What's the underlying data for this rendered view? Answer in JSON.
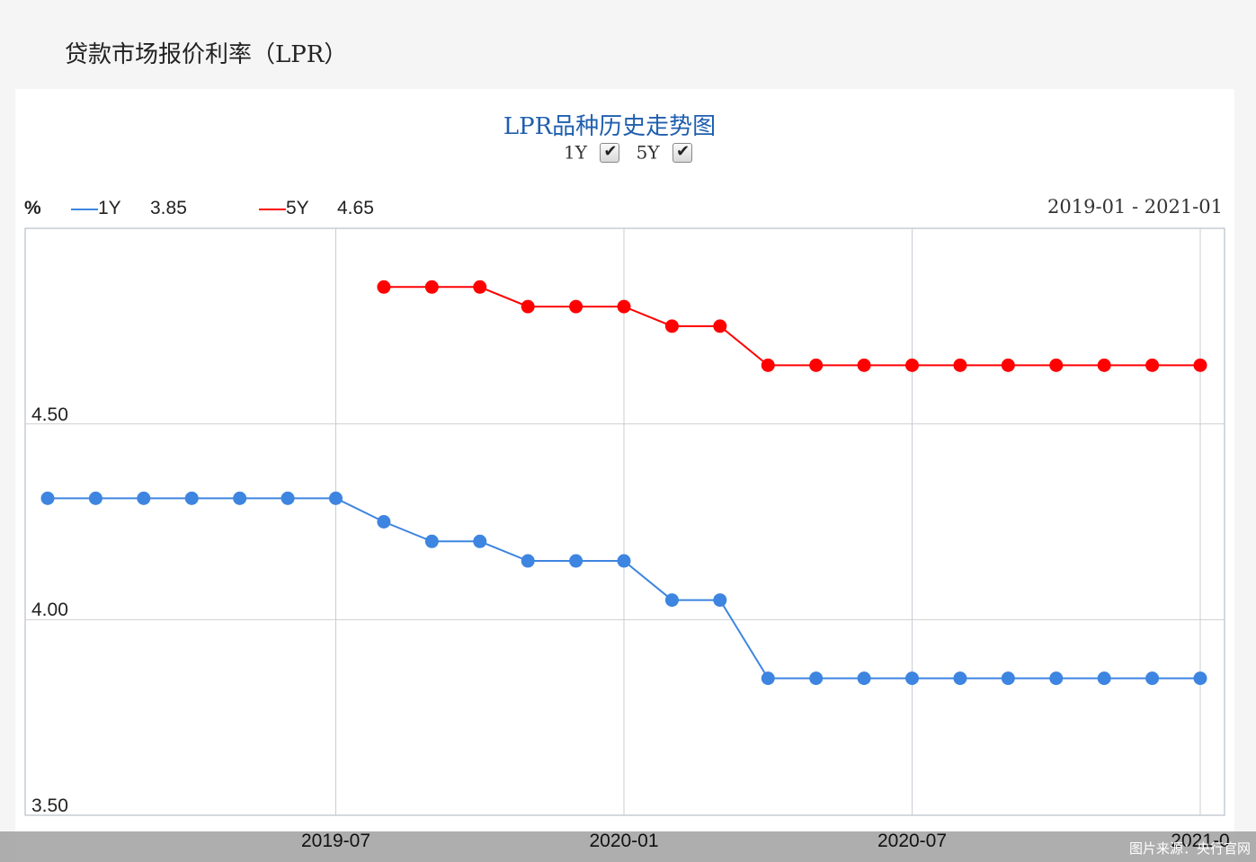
{
  "page": {
    "title": "贷款市场报价利率（LPR）"
  },
  "chart_toggles": [
    {
      "label": "1Y",
      "checked": true
    },
    {
      "label": "5Y",
      "checked": true
    }
  ],
  "legend": {
    "unit": "%",
    "items": [
      {
        "label": "1Y",
        "value": "3.85",
        "color": "#3d85e0"
      },
      {
        "label": "5Y",
        "value": "4.65",
        "color": "#ff0000"
      }
    ],
    "range": "2019-01 - 2021-01"
  },
  "watermark": "图片来源：央行官网",
  "chart_data": {
    "type": "line",
    "title": "LPR品种历史走势图",
    "xlabel": "",
    "ylabel": "%",
    "x": [
      "2019-01",
      "2019-02",
      "2019-03",
      "2019-04",
      "2019-05",
      "2019-06",
      "2019-07",
      "2019-08",
      "2019-09",
      "2019-10",
      "2019-11",
      "2019-12",
      "2020-01",
      "2020-02",
      "2020-03",
      "2020-04",
      "2020-05",
      "2020-06",
      "2020-07",
      "2020-08",
      "2020-09",
      "2020-10",
      "2020-11",
      "2020-12",
      "2021-01"
    ],
    "x_tick_labels": [
      "2019-07",
      "2020-01",
      "2020-07",
      "2021-0"
    ],
    "y_tick_labels": [
      "4.50",
      "4.00",
      "3.50"
    ],
    "ylim": [
      3.5,
      5.0
    ],
    "grid": true,
    "series": [
      {
        "name": "1Y",
        "color": "#3d85e0",
        "values": [
          4.31,
          4.31,
          4.31,
          4.31,
          4.31,
          4.31,
          4.31,
          4.25,
          4.2,
          4.2,
          4.15,
          4.15,
          4.15,
          4.05,
          4.05,
          3.85,
          3.85,
          3.85,
          3.85,
          3.85,
          3.85,
          3.85,
          3.85,
          3.85,
          3.85
        ]
      },
      {
        "name": "5Y",
        "color": "#ff0000",
        "values": [
          null,
          null,
          null,
          null,
          null,
          null,
          null,
          4.85,
          4.85,
          4.85,
          4.8,
          4.8,
          4.8,
          4.75,
          4.75,
          4.65,
          4.65,
          4.65,
          4.65,
          4.65,
          4.65,
          4.65,
          4.65,
          4.65,
          4.65
        ]
      }
    ]
  }
}
